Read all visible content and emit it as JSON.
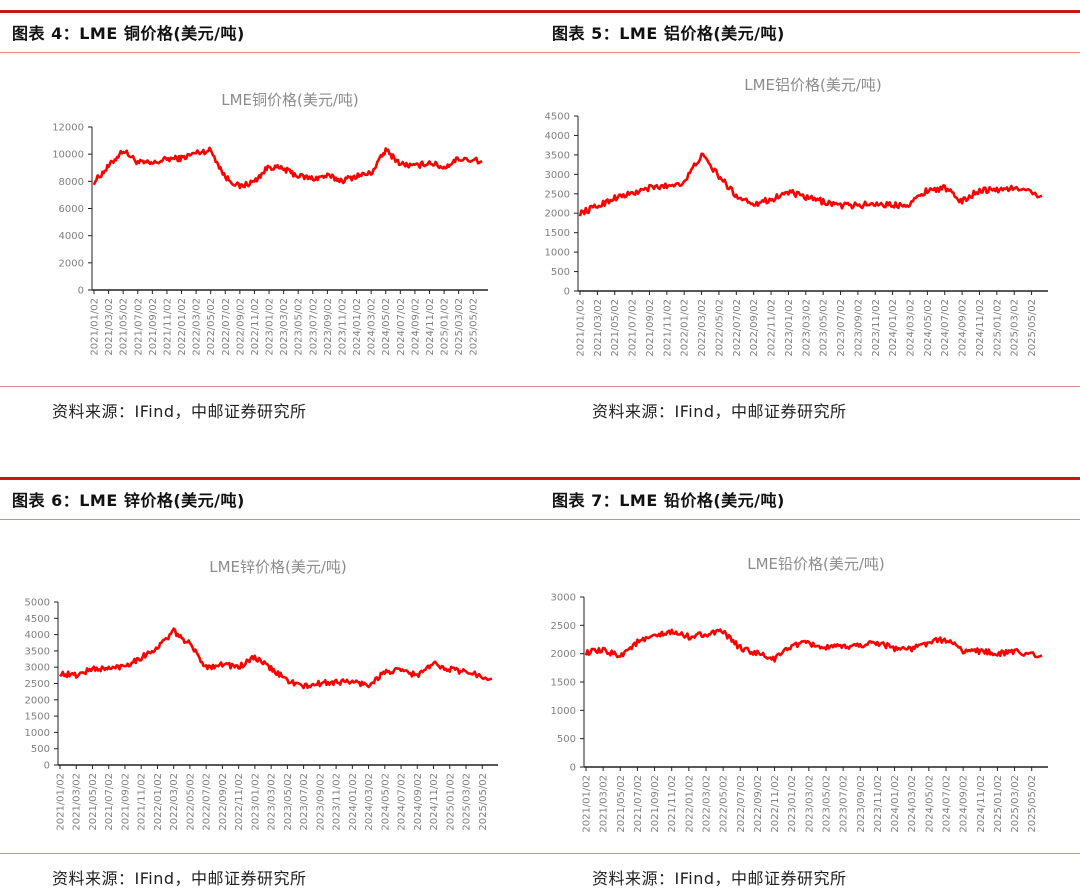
{
  "panels": [
    {
      "heading": "图表 4：LME 铜价格(美元/吨)",
      "source": "资料来源：IFind，中邮证券研究所"
    },
    {
      "heading": "图表 5：LME 铝价格(美元/吨)",
      "source": "资料来源：IFind，中邮证券研究所"
    },
    {
      "heading": "图表 6：LME 锌价格(美元/吨)",
      "source": "资料来源：IFind，中邮证券研究所"
    },
    {
      "heading": "图表 7：LME 铅价格(美元/吨)",
      "source": "资料来源：IFind，中邮证券研究所"
    }
  ],
  "line_color": "#ff0000",
  "chart_data": [
    {
      "type": "line",
      "title": "LME铜价格(美元/吨)",
      "xlabel": "",
      "ylabel": "",
      "ylim": [
        0,
        12000
      ],
      "yticks": [
        0,
        2000,
        4000,
        6000,
        8000,
        10000,
        12000
      ],
      "categories": [
        "2021/01/02",
        "2021/03/02",
        "2021/05/02",
        "2021/07/02",
        "2021/09/02",
        "2021/11/02",
        "2022/01/02",
        "2022/03/02",
        "2022/05/02",
        "2022/07/02",
        "2022/09/02",
        "2022/11/02",
        "2023/01/02",
        "2023/03/02",
        "2023/05/02",
        "2023/07/02",
        "2023/09/02",
        "2023/11/02",
        "2024/01/02",
        "2024/03/02",
        "2024/05/02",
        "2024/07/02",
        "2024/09/02",
        "2024/11/02",
        "2025/01/02",
        "2025/03/02",
        "2025/05/02"
      ],
      "series": [
        {
          "name": "LME铜价格",
          "values": [
            7950,
            9100,
            10300,
            9400,
            9300,
            9650,
            9700,
            10100,
            10300,
            8300,
            7600,
            8000,
            9100,
            8900,
            8400,
            8200,
            8400,
            8050,
            8400,
            8600,
            10300,
            9300,
            9100,
            9400,
            9000,
            9700,
            9500
          ]
        }
      ],
      "legend": "none",
      "grid": false
    },
    {
      "type": "line",
      "title": "LME铝价格(美元/吨)",
      "xlabel": "",
      "ylabel": "",
      "ylim": [
        0,
        4500
      ],
      "yticks": [
        0,
        500,
        1000,
        1500,
        2000,
        2500,
        3000,
        3500,
        4000,
        4500
      ],
      "categories": [
        "2021/01/02",
        "2021/03/02",
        "2021/05/02",
        "2021/07/02",
        "2021/09/02",
        "2021/11/02",
        "2022/01/02",
        "2022/03/02",
        "2022/05/02",
        "2022/07/02",
        "2022/09/02",
        "2022/11/02",
        "2023/01/02",
        "2023/03/02",
        "2023/05/02",
        "2023/07/02",
        "2023/09/02",
        "2023/11/02",
        "2024/01/02",
        "2024/03/02",
        "2024/05/02",
        "2024/07/02",
        "2024/09/02",
        "2024/11/02",
        "2025/01/02",
        "2025/03/02",
        "2025/05/02"
      ],
      "series": [
        {
          "name": "LME铝价格",
          "values": [
            2000,
            2180,
            2400,
            2500,
            2650,
            2700,
            2800,
            3500,
            2950,
            2450,
            2250,
            2350,
            2550,
            2400,
            2300,
            2200,
            2200,
            2250,
            2200,
            2250,
            2600,
            2650,
            2300,
            2600,
            2600,
            2650,
            2450
          ]
        }
      ],
      "legend": "none",
      "grid": false
    },
    {
      "type": "line",
      "title": "LME锌价格(美元/吨)",
      "xlabel": "",
      "ylabel": "",
      "ylim": [
        0,
        5000
      ],
      "yticks": [
        0,
        500,
        1000,
        1500,
        2000,
        2500,
        3000,
        3500,
        4000,
        4500,
        5000
      ],
      "categories": [
        "2021/01/02",
        "2021/03/02",
        "2021/05/02",
        "2021/07/02",
        "2021/09/02",
        "2021/11/02",
        "2022/01/02",
        "2022/03/02",
        "2022/05/02",
        "2022/07/02",
        "2022/09/02",
        "2022/11/02",
        "2023/01/02",
        "2023/03/02",
        "2023/05/02",
        "2023/07/02",
        "2023/09/02",
        "2023/11/02",
        "2024/01/02",
        "2024/03/02",
        "2024/05/02",
        "2024/07/02",
        "2024/09/02",
        "2024/11/02",
        "2025/01/02",
        "2025/03/02",
        "2025/05/02"
      ],
      "series": [
        {
          "name": "LME锌价格",
          "values": [
            2800,
            2750,
            2950,
            2950,
            3050,
            3300,
            3600,
            4100,
            3700,
            3000,
            3100,
            3000,
            3300,
            2950,
            2600,
            2400,
            2500,
            2550,
            2550,
            2450,
            2850,
            2900,
            2750,
            3100,
            2950,
            2850,
            2650
          ]
        }
      ],
      "legend": "none",
      "grid": false
    },
    {
      "type": "line",
      "title": "LME铅价格(美元/吨)",
      "xlabel": "",
      "ylabel": "",
      "ylim": [
        0,
        3000
      ],
      "yticks": [
        0,
        500,
        1000,
        1500,
        2000,
        2500,
        3000
      ],
      "categories": [
        "2021/01/02",
        "2021/03/02",
        "2021/05/02",
        "2021/07/02",
        "2021/09/02",
        "2021/11/02",
        "2022/01/02",
        "2022/03/02",
        "2022/05/02",
        "2022/07/02",
        "2022/09/02",
        "2022/11/02",
        "2023/01/02",
        "2023/03/02",
        "2023/05/02",
        "2023/07/02",
        "2023/09/02",
        "2023/11/02",
        "2024/01/02",
        "2024/03/02",
        "2024/05/02",
        "2024/07/02",
        "2024/09/02",
        "2024/11/02",
        "2025/01/02",
        "2025/03/02",
        "2025/05/02"
      ],
      "series": [
        {
          "name": "LME铅价格",
          "values": [
            2020,
            2050,
            1970,
            2200,
            2300,
            2380,
            2300,
            2350,
            2380,
            2100,
            2000,
            1900,
            2150,
            2180,
            2100,
            2120,
            2150,
            2200,
            2100,
            2080,
            2200,
            2250,
            2050,
            2050,
            2000,
            2030,
            1970
          ]
        }
      ],
      "legend": "none",
      "grid": false
    }
  ]
}
